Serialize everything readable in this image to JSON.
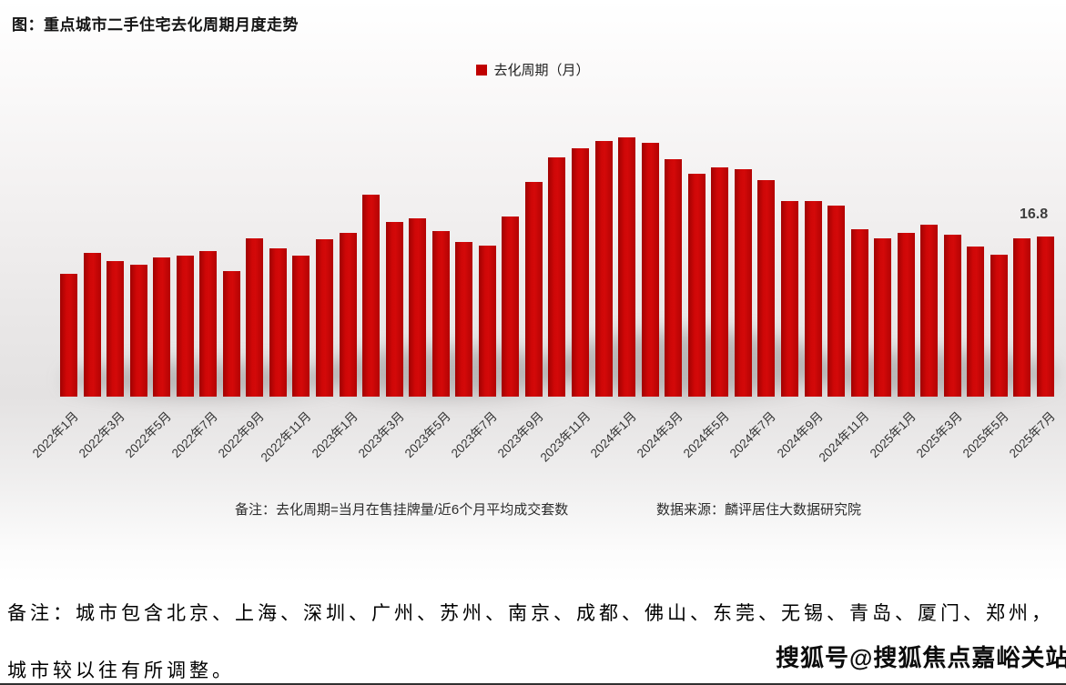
{
  "page": {
    "title": "图：重点城市二手住宅去化周期月度走势",
    "note_line1": "备注：城市包含北京、上海、深圳、广州、苏州、南京、成都、佛山、东莞、无锡、青岛、厦门、郑州，",
    "note_line2": "城市较以往有所调整。",
    "watermark": "搜狐号@搜狐焦点嘉峪关站"
  },
  "chart": {
    "legend_label": "去化周期（月）",
    "footnote": "备注：去化周期=当月在售挂牌量/近6个月平均成交套数",
    "source": "数据来源：麟评居住大数据研究院",
    "last_value_label": "16.8",
    "bar_color": "#c00000"
  },
  "chart_data": {
    "type": "bar",
    "title": "图：重点城市二手住宅去化周期月度走势",
    "legend": [
      "去化周期（月）"
    ],
    "ylabel": "去化周期（月）",
    "xlabel": "",
    "ylim": [
      0,
      28
    ],
    "grid": false,
    "legend_position": "top-center",
    "categories": [
      "2022年1月",
      "2022年2月",
      "2022年3月",
      "2022年4月",
      "2022年5月",
      "2022年6月",
      "2022年7月",
      "2022年8月",
      "2022年9月",
      "2022年10月",
      "2022年11月",
      "2022年12月",
      "2023年1月",
      "2023年2月",
      "2023年3月",
      "2023年4月",
      "2023年5月",
      "2023年6月",
      "2023年7月",
      "2023年8月",
      "2023年9月",
      "2023年10月",
      "2023年11月",
      "2023年12月",
      "2024年1月",
      "2024年2月",
      "2024年3月",
      "2024年4月",
      "2024年5月",
      "2024年6月",
      "2024年7月",
      "2024年8月",
      "2024年9月",
      "2024年10月",
      "2024年11月",
      "2024年12月",
      "2025年1月",
      "2025年2月",
      "2025年3月",
      "2025年4月",
      "2025年5月",
      "2025年6月",
      "2025年7月"
    ],
    "values": [
      12.9,
      15.1,
      14.3,
      13.9,
      14.6,
      14.8,
      15.3,
      13.2,
      16.6,
      15.6,
      14.8,
      16.5,
      17.2,
      21.2,
      18.4,
      18.7,
      17.4,
      16.3,
      15.9,
      18.9,
      22.6,
      25.2,
      26.1,
      26.9,
      27.3,
      26.7,
      25.0,
      23.4,
      24.1,
      23.9,
      22.8,
      20.6,
      20.6,
      20.1,
      17.6,
      16.6,
      17.2,
      18.1,
      17.0,
      15.8,
      14.9,
      16.6,
      16.8
    ],
    "x_tick_labels": [
      "2022年1月",
      "2022年3月",
      "2022年5月",
      "2022年7月",
      "2022年9月",
      "2022年11月",
      "2023年1月",
      "2023年3月",
      "2023年5月",
      "2023年7月",
      "2023年9月",
      "2023年11月",
      "2024年1月",
      "2024年3月",
      "2024年5月",
      "2024年7月",
      "2024年9月",
      "2024年11月",
      "2025年1月",
      "2025年3月",
      "2025年5月",
      "2025年7月"
    ],
    "data_labels": [
      {
        "category": "2025年7月",
        "value": 16.8
      }
    ]
  }
}
